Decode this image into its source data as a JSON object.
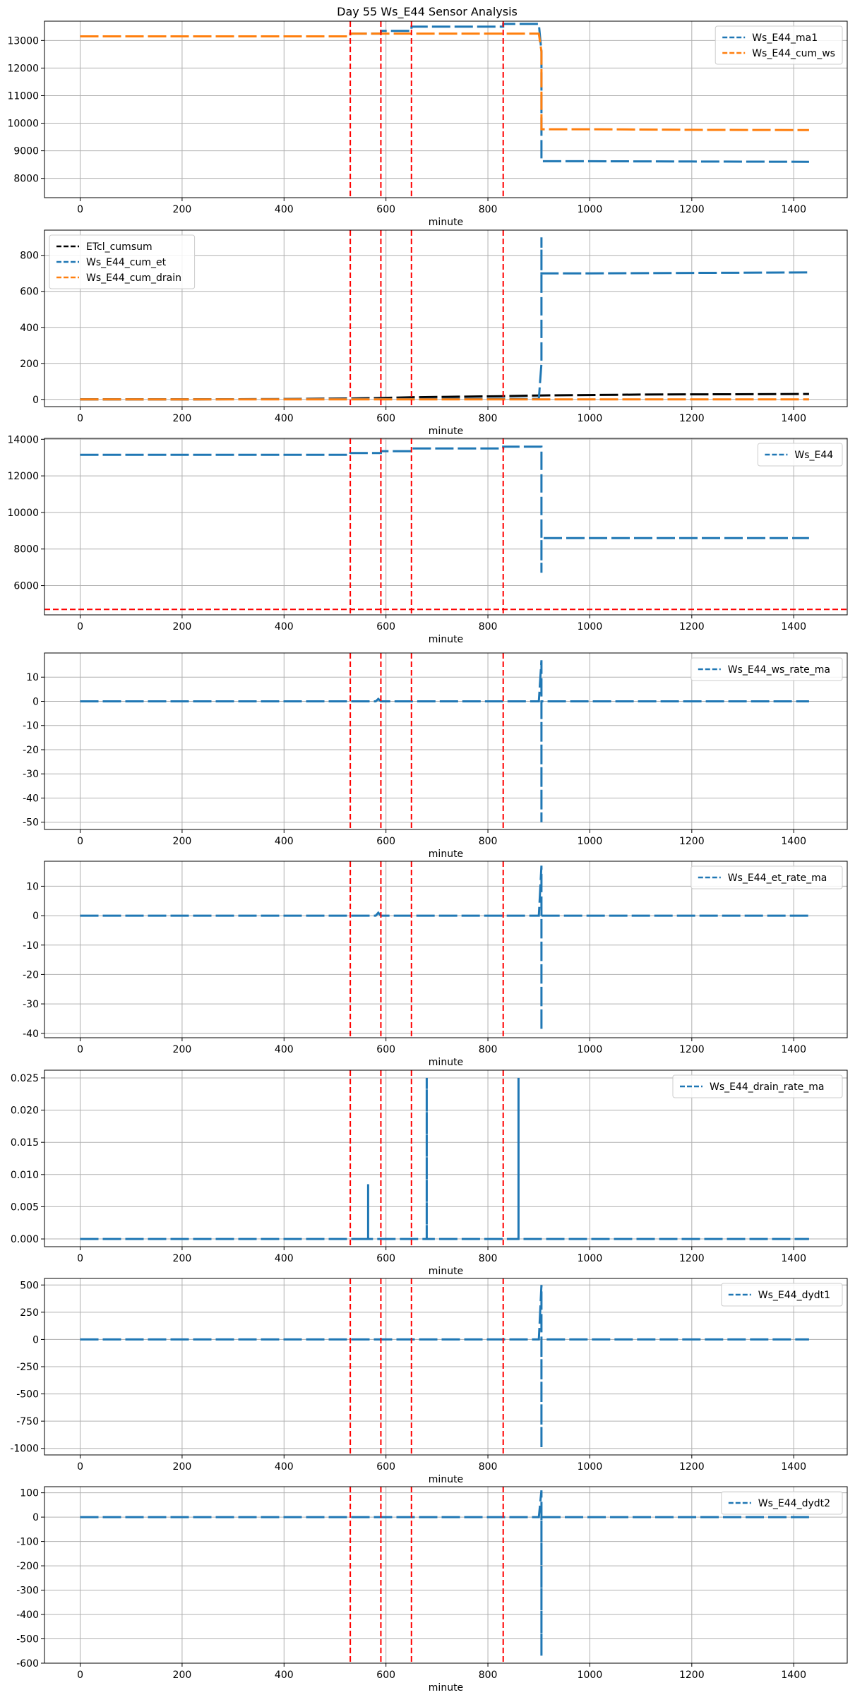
{
  "figure_title": "Day 55 Ws_E44 Sensor Analysis",
  "colors": {
    "blue": "#1f77b4",
    "orange": "#ff7f0e",
    "black": "#000000",
    "red": "#ff0000",
    "grid": "#b0b0b0"
  },
  "chart_data": [
    {
      "type": "line",
      "xlabel": "minute",
      "xlim": [
        -70,
        1505
      ],
      "ylim": [
        7300,
        13700
      ],
      "xticks": [
        0,
        200,
        400,
        600,
        800,
        1000,
        1200,
        1400
      ],
      "yticks": [
        8000,
        9000,
        10000,
        11000,
        12000,
        13000
      ],
      "legend": "upper-right",
      "grid": true,
      "vlines": [
        530,
        590,
        650,
        830
      ],
      "series": [
        {
          "name": "Ws_E44_ma1",
          "color": "#1f77b4",
          "x": [
            0,
            530,
            530,
            590,
            590,
            650,
            650,
            830,
            830,
            900,
            905,
            905,
            1000,
            1200,
            1430
          ],
          "y": [
            13150,
            13150,
            13250,
            13250,
            13350,
            13350,
            13500,
            13500,
            13600,
            13600,
            12600,
            8620,
            8620,
            8610,
            8600
          ]
        },
        {
          "name": "Ws_E44_cum_ws",
          "color": "#ff7f0e",
          "x": [
            0,
            530,
            530,
            900,
            905,
            905,
            1000,
            1200,
            1430
          ],
          "y": [
            13150,
            13150,
            13250,
            13250,
            12600,
            9780,
            9780,
            9760,
            9750
          ]
        }
      ]
    },
    {
      "type": "line",
      "xlabel": "minute",
      "xlim": [
        -70,
        1505
      ],
      "ylim": [
        -40,
        940
      ],
      "xticks": [
        0,
        200,
        400,
        600,
        800,
        1000,
        1200,
        1400
      ],
      "yticks": [
        0,
        200,
        400,
        600,
        800
      ],
      "legend": "upper-left",
      "grid": true,
      "vlines": [
        530,
        590,
        650,
        830
      ],
      "series": [
        {
          "name": "ETcl_cumsum",
          "color": "#000000",
          "x": [
            0,
            200,
            400,
            530,
            590,
            650,
            830,
            900,
            1100,
            1430
          ],
          "y": [
            0,
            0,
            2,
            5,
            8,
            12,
            18,
            22,
            27,
            30
          ]
        },
        {
          "name": "Ws_E44_cum_et",
          "color": "#1f77b4",
          "x": [
            0,
            530,
            900,
            905,
            905,
            905,
            1000,
            1430
          ],
          "y": [
            0,
            2,
            3,
            200,
            900,
            700,
            700,
            705
          ]
        },
        {
          "name": "Ws_E44_cum_drain",
          "color": "#ff7f0e",
          "x": [
            0,
            1430
          ],
          "y": [
            0,
            0
          ]
        }
      ]
    },
    {
      "type": "line",
      "xlabel": "minute",
      "xlim": [
        -70,
        1505
      ],
      "ylim": [
        4400,
        14050
      ],
      "xticks": [
        0,
        200,
        400,
        600,
        800,
        1000,
        1200,
        1400
      ],
      "yticks": [
        6000,
        8000,
        10000,
        12000,
        14000
      ],
      "legend": "upper-right",
      "grid": true,
      "vlines": [
        530,
        590,
        650,
        830
      ],
      "hline": 4700,
      "series": [
        {
          "name": "Ws_E44",
          "color": "#1f77b4",
          "x": [
            0,
            530,
            530,
            590,
            590,
            650,
            650,
            830,
            830,
            900,
            905,
            905,
            905,
            1000,
            1430
          ],
          "y": [
            13150,
            13150,
            13250,
            13250,
            13350,
            13350,
            13500,
            13500,
            13600,
            13600,
            13600,
            6700,
            8600,
            8600,
            8600
          ]
        }
      ]
    },
    {
      "type": "line",
      "xlabel": "minute",
      "xlim": [
        -70,
        1505
      ],
      "ylim": [
        -53,
        20
      ],
      "xticks": [
        0,
        200,
        400,
        600,
        800,
        1000,
        1200,
        1400
      ],
      "yticks": [
        10,
        0,
        -10,
        -20,
        -30,
        -40,
        -50
      ],
      "legend": "upper-right",
      "grid": true,
      "vlines": [
        530,
        590,
        650,
        830
      ],
      "series": [
        {
          "name": "Ws_E44_ws_rate_ma",
          "color": "#1f77b4",
          "x": [
            0,
            580,
            585,
            590,
            900,
            905,
            905,
            905,
            910,
            1430
          ],
          "y": [
            0,
            0,
            1,
            0,
            0,
            17,
            -50,
            0,
            0,
            0
          ]
        }
      ]
    },
    {
      "type": "line",
      "xlabel": "minute",
      "xlim": [
        -70,
        1505
      ],
      "ylim": [
        -41.5,
        18.5
      ],
      "xticks": [
        0,
        200,
        400,
        600,
        800,
        1000,
        1200,
        1400
      ],
      "yticks": [
        10,
        0,
        -10,
        -20,
        -30,
        -40
      ],
      "legend": "upper-right",
      "grid": true,
      "vlines": [
        530,
        590,
        650,
        830
      ],
      "series": [
        {
          "name": "Ws_E44_et_rate_ma",
          "color": "#1f77b4",
          "x": [
            0,
            580,
            585,
            590,
            900,
            905,
            905,
            905,
            910,
            1430
          ],
          "y": [
            0,
            0,
            1,
            0,
            0,
            17,
            -39,
            0,
            0,
            0
          ]
        }
      ]
    },
    {
      "type": "line",
      "xlabel": "minute",
      "xlim": [
        -70,
        1505
      ],
      "ylim": [
        -0.0012,
        0.0262
      ],
      "xticks": [
        0,
        200,
        400,
        600,
        800,
        1000,
        1200,
        1400
      ],
      "yticks": [
        0.0,
        0.005,
        0.01,
        0.015,
        0.02,
        0.025
      ],
      "ytick_labels": [
        "0.000",
        "0.005",
        "0.010",
        "0.015",
        "0.020",
        "0.025"
      ],
      "legend": "upper-right",
      "grid": true,
      "vlines": [
        530,
        590,
        650,
        830
      ],
      "series": [
        {
          "name": "Ws_E44_drain_rate_ma",
          "color": "#1f77b4",
          "x": [
            0,
            565,
            565,
            565,
            680,
            680,
            680,
            860,
            860,
            860,
            1430
          ],
          "y": [
            0,
            0,
            0.0085,
            0,
            0,
            0.025,
            0,
            0,
            0.025,
            0,
            0
          ]
        }
      ]
    },
    {
      "type": "line",
      "xlabel": "minute",
      "xlim": [
        -70,
        1505
      ],
      "ylim": [
        -1060,
        560
      ],
      "xticks": [
        0,
        200,
        400,
        600,
        800,
        1000,
        1200,
        1400
      ],
      "yticks": [
        500,
        250,
        0,
        -250,
        -500,
        -750,
        -1000
      ],
      "legend": "upper-right",
      "grid": true,
      "vlines": [
        530,
        590,
        650,
        830
      ],
      "series": [
        {
          "name": "Ws_E44_dydt1",
          "color": "#1f77b4",
          "x": [
            0,
            900,
            905,
            905,
            905,
            910,
            1430
          ],
          "y": [
            0,
            0,
            500,
            -1000,
            0,
            0,
            0
          ]
        }
      ]
    },
    {
      "type": "line",
      "xlabel": "minute",
      "xlim": [
        -70,
        1505
      ],
      "ylim": [
        -600,
        125
      ],
      "xticks": [
        0,
        200,
        400,
        600,
        800,
        1000,
        1200,
        1400
      ],
      "yticks": [
        100,
        0,
        -100,
        -200,
        -300,
        -400,
        -500,
        -600
      ],
      "legend": "upper-right",
      "grid": true,
      "vlines": [
        530,
        590,
        650,
        830
      ],
      "series": [
        {
          "name": "Ws_E44_dydt2",
          "color": "#1f77b4",
          "x": [
            0,
            900,
            905,
            905,
            905,
            910,
            1430
          ],
          "y": [
            0,
            0,
            110,
            -570,
            0,
            0,
            0
          ]
        }
      ]
    }
  ]
}
